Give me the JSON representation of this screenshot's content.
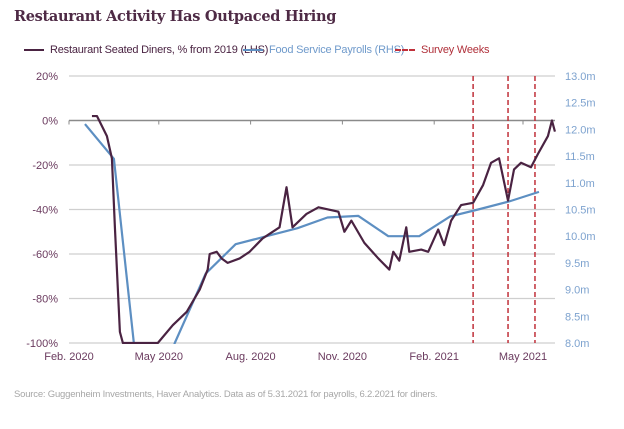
{
  "chart_data": {
    "type": "line",
    "title": "Restaurant Activity Has Outpaced Hiring",
    "source": "Source: Guggenheim Investments, Haver Analytics. Data as of 5.31.2021 for payrolls, 6.2.2021 for diners.",
    "legend_placement": "top",
    "grid": true,
    "colors": {
      "diners": "#4a2342",
      "payrolls": "#5d8fc2",
      "survey": "#c0303a",
      "left_axis": "#6a3a5e",
      "right_axis": "#7ea3cf"
    },
    "x_ticks": [
      "Feb. 2020",
      "May 2020",
      "Aug. 2020",
      "Nov. 2020",
      "Feb. 2021",
      "May 2021"
    ],
    "x_tick_dates": [
      "2020-02-01",
      "2020-05-01",
      "2020-08-01",
      "2020-11-01",
      "2021-02-01",
      "2021-05-01"
    ],
    "xlim": [
      "2020-02-01",
      "2021-06-02"
    ],
    "y_left": {
      "ticks": [
        "20%",
        "0%",
        "-20%",
        "-40%",
        "-60%",
        "-80%",
        "-100%"
      ],
      "lim": [
        -100,
        20
      ]
    },
    "y_right": {
      "ticks": [
        "13.0m",
        "12.5m",
        "12.0m",
        "11.5m",
        "11.0m",
        "10.5m",
        "10.0m",
        "9.5m",
        "9.0m",
        "8.5m",
        "8.0m"
      ],
      "lim": [
        8.0,
        13.0
      ]
    },
    "series": [
      {
        "name": "Restaurant Seated Diners, % from 2019 (LHS)",
        "axis": "left",
        "points": [
          [
            "2020-02-24",
            2
          ],
          [
            "2020-02-29",
            2
          ],
          [
            "2020-03-10",
            -7
          ],
          [
            "2020-03-15",
            -17
          ],
          [
            "2020-03-18",
            -48
          ],
          [
            "2020-03-23",
            -95
          ],
          [
            "2020-03-26",
            -100
          ],
          [
            "2020-04-30",
            -100
          ],
          [
            "2020-05-15",
            -92
          ],
          [
            "2020-05-29",
            -86
          ],
          [
            "2020-06-11",
            -76
          ],
          [
            "2020-06-19",
            -67
          ],
          [
            "2020-06-21",
            -60
          ],
          [
            "2020-06-28",
            -59
          ],
          [
            "2020-07-03",
            -62
          ],
          [
            "2020-07-09",
            -64
          ],
          [
            "2020-07-21",
            -62
          ],
          [
            "2020-07-31",
            -59
          ],
          [
            "2020-08-13",
            -53
          ],
          [
            "2020-08-30",
            -48
          ],
          [
            "2020-09-06",
            -30
          ],
          [
            "2020-09-12",
            -48
          ],
          [
            "2020-09-26",
            -42
          ],
          [
            "2020-10-08",
            -39
          ],
          [
            "2020-10-28",
            -41
          ],
          [
            "2020-11-03",
            -50
          ],
          [
            "2020-11-10",
            -45
          ],
          [
            "2020-11-23",
            -55
          ],
          [
            "2020-12-07",
            -62
          ],
          [
            "2020-12-18",
            -67
          ],
          [
            "2020-12-22",
            -59
          ],
          [
            "2020-12-28",
            -63
          ],
          [
            "2021-01-04",
            -48
          ],
          [
            "2021-01-07",
            -59
          ],
          [
            "2021-01-19",
            -58
          ],
          [
            "2021-01-26",
            -59
          ],
          [
            "2021-02-05",
            -49
          ],
          [
            "2021-02-11",
            -56
          ],
          [
            "2021-02-18",
            -45
          ],
          [
            "2021-02-28",
            -38
          ],
          [
            "2021-03-12",
            -37
          ],
          [
            "2021-03-22",
            -29
          ],
          [
            "2021-03-30",
            -19
          ],
          [
            "2021-04-07",
            -17
          ],
          [
            "2021-04-16",
            -36
          ],
          [
            "2021-04-22",
            -22
          ],
          [
            "2021-04-29",
            -19
          ],
          [
            "2021-05-09",
            -21
          ],
          [
            "2021-05-16",
            -15
          ],
          [
            "2021-05-26",
            -7
          ],
          [
            "2021-05-30",
            0
          ],
          [
            "2021-06-02",
            -5
          ]
        ]
      },
      {
        "name": "Food Service Payrolls (RHS)",
        "axis": "right",
        "points": [
          [
            "2020-02",
            12.1
          ],
          [
            "2020-03",
            11.45
          ],
          [
            "2020-04",
            6.1
          ],
          [
            "2020-05",
            8.0
          ],
          [
            "2020-06",
            9.3
          ],
          [
            "2020-07",
            9.85
          ],
          [
            "2020-08",
            10.0
          ],
          [
            "2020-09",
            10.15
          ],
          [
            "2020-10",
            10.35
          ],
          [
            "2020-11",
            10.38
          ],
          [
            "2020-12",
            10.0
          ],
          [
            "2021-01",
            10.0
          ],
          [
            "2021-02",
            10.37
          ],
          [
            "2021-03",
            10.5
          ],
          [
            "2021-04",
            10.65
          ],
          [
            "2021-05",
            10.83
          ]
        ]
      }
    ],
    "survey_weeks": {
      "name": "Survey Weeks",
      "dates": [
        "2021-03-12",
        "2021-04-16",
        "2021-05-13"
      ]
    }
  }
}
